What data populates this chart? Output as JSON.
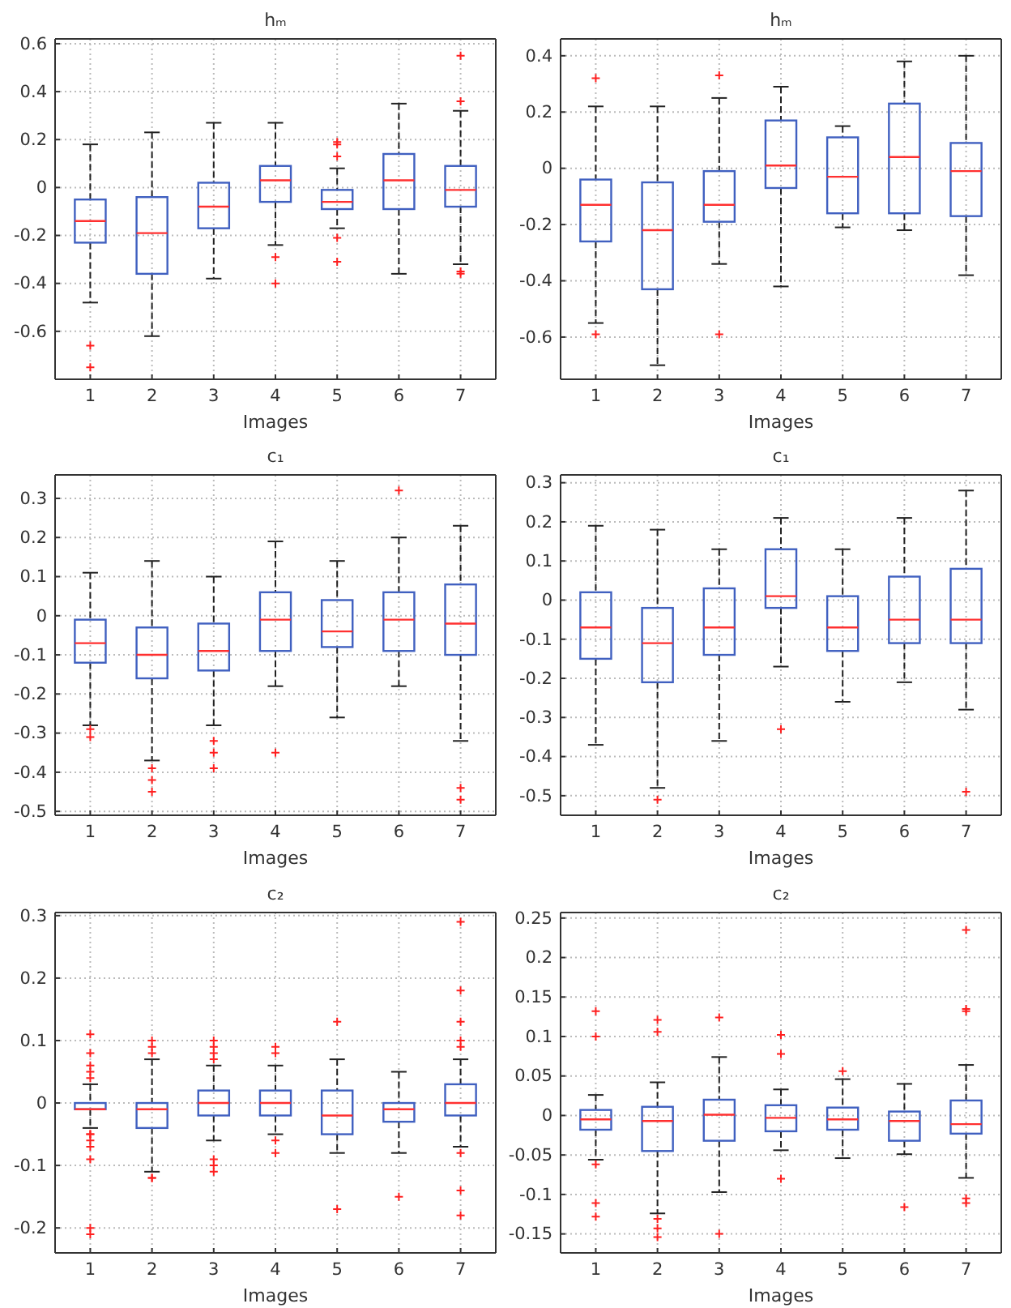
{
  "chart_data": [
    {
      "type": "box",
      "title": "hₘ",
      "xlabel": "Images",
      "categories": [
        "1",
        "2",
        "3",
        "4",
        "5",
        "6",
        "7"
      ],
      "ylim": [
        -0.8,
        0.62
      ],
      "yticks": [
        -0.6,
        -0.4,
        -0.2,
        0,
        0.2,
        0.4,
        0.6
      ],
      "grid": true,
      "series": [
        {
          "color": "#4060c0",
          "boxes": [
            {
              "low": -0.48,
              "q1": -0.23,
              "median": -0.14,
              "q3": -0.05,
              "high": 0.18,
              "outliers": [
                -0.66,
                -0.75
              ]
            },
            {
              "low": -0.62,
              "q1": -0.36,
              "median": -0.19,
              "q3": -0.04,
              "high": 0.23
            },
            {
              "low": -0.38,
              "q1": -0.17,
              "median": -0.08,
              "q3": 0.02,
              "high": 0.27
            },
            {
              "low": -0.24,
              "q1": -0.06,
              "median": 0.03,
              "q3": 0.09,
              "high": 0.27,
              "outliers": [
                -0.29,
                -0.4
              ]
            },
            {
              "low": -0.17,
              "q1": -0.09,
              "median": -0.06,
              "q3": -0.01,
              "high": 0.08,
              "outliers": [
                0.19,
                0.18,
                0.13,
                -0.21,
                -0.31
              ]
            },
            {
              "low": -0.36,
              "q1": -0.09,
              "median": 0.03,
              "q3": 0.14,
              "high": 0.35
            },
            {
              "low": -0.32,
              "q1": -0.08,
              "median": -0.01,
              "q3": 0.09,
              "high": 0.32,
              "outliers": [
                0.55,
                0.36,
                -0.35,
                -0.36
              ]
            }
          ]
        }
      ]
    },
    {
      "type": "box",
      "title": "hₘ",
      "xlabel": "Images",
      "categories": [
        "1",
        "2",
        "3",
        "4",
        "5",
        "6",
        "7"
      ],
      "ylim": [
        -0.75,
        0.46
      ],
      "yticks": [
        -0.6,
        -0.4,
        -0.2,
        0,
        0.2,
        0.4
      ],
      "grid": true,
      "series": [
        {
          "color": "#4060c0",
          "boxes": [
            {
              "low": -0.55,
              "q1": -0.26,
              "median": -0.13,
              "q3": -0.04,
              "high": 0.22,
              "outliers": [
                0.32,
                -0.59
              ]
            },
            {
              "low": -0.7,
              "q1": -0.43,
              "median": -0.22,
              "q3": -0.05,
              "high": 0.22
            },
            {
              "low": -0.34,
              "q1": -0.19,
              "median": -0.13,
              "q3": -0.01,
              "high": 0.25,
              "outliers": [
                0.33,
                -0.59
              ]
            },
            {
              "low": -0.42,
              "q1": -0.07,
              "median": 0.01,
              "q3": 0.17,
              "high": 0.29
            },
            {
              "low": -0.21,
              "q1": -0.16,
              "median": -0.03,
              "q3": 0.11,
              "high": 0.15
            },
            {
              "low": -0.22,
              "q1": -0.16,
              "median": 0.04,
              "q3": 0.23,
              "high": 0.38
            },
            {
              "low": -0.38,
              "q1": -0.17,
              "median": -0.01,
              "q3": 0.09,
              "high": 0.4
            }
          ]
        }
      ]
    },
    {
      "type": "box",
      "title": "c₁",
      "xlabel": "Images",
      "categories": [
        "1",
        "2",
        "3",
        "4",
        "5",
        "6",
        "7"
      ],
      "ylim": [
        -0.51,
        0.36
      ],
      "yticks": [
        -0.5,
        -0.4,
        -0.3,
        -0.2,
        -0.1,
        0,
        0.1,
        0.2,
        0.3
      ],
      "grid": true,
      "series": [
        {
          "color": "#4060c0",
          "boxes": [
            {
              "low": -0.28,
              "q1": -0.12,
              "median": -0.07,
              "q3": -0.01,
              "high": 0.11,
              "outliers": [
                -0.29,
                -0.31
              ]
            },
            {
              "low": -0.37,
              "q1": -0.16,
              "median": -0.1,
              "q3": -0.03,
              "high": 0.14,
              "outliers": [
                -0.39,
                -0.42,
                -0.45
              ]
            },
            {
              "low": -0.28,
              "q1": -0.14,
              "median": -0.09,
              "q3": -0.02,
              "high": 0.1,
              "outliers": [
                -0.32,
                -0.35,
                -0.39
              ]
            },
            {
              "low": -0.18,
              "q1": -0.09,
              "median": -0.01,
              "q3": 0.06,
              "high": 0.19,
              "outliers": [
                -0.35
              ]
            },
            {
              "low": -0.26,
              "q1": -0.08,
              "median": -0.04,
              "q3": 0.04,
              "high": 0.14
            },
            {
              "low": -0.18,
              "q1": -0.09,
              "median": -0.01,
              "q3": 0.06,
              "high": 0.2,
              "outliers": [
                0.32
              ]
            },
            {
              "low": -0.32,
              "q1": -0.1,
              "median": -0.02,
              "q3": 0.08,
              "high": 0.23,
              "outliers": [
                -0.44,
                -0.47
              ]
            }
          ]
        }
      ]
    },
    {
      "type": "box",
      "title": "c₁",
      "xlabel": "Images",
      "categories": [
        "1",
        "2",
        "3",
        "4",
        "5",
        "6",
        "7"
      ],
      "ylim": [
        -0.55,
        0.32
      ],
      "yticks": [
        -0.5,
        -0.4,
        -0.3,
        -0.2,
        -0.1,
        0,
        0.1,
        0.2,
        0.3
      ],
      "grid": true,
      "series": [
        {
          "color": "#4060c0",
          "boxes": [
            {
              "low": -0.37,
              "q1": -0.15,
              "median": -0.07,
              "q3": 0.02,
              "high": 0.19
            },
            {
              "low": -0.48,
              "q1": -0.21,
              "median": -0.11,
              "q3": -0.02,
              "high": 0.18,
              "outliers": [
                -0.51
              ]
            },
            {
              "low": -0.36,
              "q1": -0.14,
              "median": -0.07,
              "q3": 0.03,
              "high": 0.13
            },
            {
              "low": -0.17,
              "q1": -0.02,
              "median": 0.01,
              "q3": 0.13,
              "high": 0.21,
              "outliers": [
                -0.33
              ]
            },
            {
              "low": -0.26,
              "q1": -0.13,
              "median": -0.07,
              "q3": 0.01,
              "high": 0.13
            },
            {
              "low": -0.21,
              "q1": -0.11,
              "median": -0.05,
              "q3": 0.06,
              "high": 0.21
            },
            {
              "low": -0.28,
              "q1": -0.11,
              "median": -0.05,
              "q3": 0.08,
              "high": 0.28,
              "outliers": [
                -0.49
              ]
            }
          ]
        }
      ]
    },
    {
      "type": "box",
      "title": "c₂",
      "xlabel": "Images",
      "categories": [
        "1",
        "2",
        "3",
        "4",
        "5",
        "6",
        "7"
      ],
      "ylim": [
        -0.24,
        0.305
      ],
      "yticks": [
        -0.2,
        -0.1,
        0,
        0.1,
        0.2,
        0.3
      ],
      "grid": true,
      "series": [
        {
          "color": "#4060c0",
          "boxes": [
            {
              "low": -0.04,
              "q1": -0.01,
              "median": -0.01,
              "q3": 0.0,
              "high": 0.03,
              "outliers": [
                0.11,
                0.08,
                0.06,
                0.05,
                0.04,
                -0.05,
                -0.05,
                -0.06,
                -0.07,
                -0.09,
                -0.2,
                -0.21
              ]
            },
            {
              "low": -0.11,
              "q1": -0.04,
              "median": -0.01,
              "q3": 0.0,
              "high": 0.07,
              "outliers": [
                0.1,
                0.09,
                0.08,
                -0.12,
                -0.12
              ]
            },
            {
              "low": -0.06,
              "q1": -0.02,
              "median": 0.0,
              "q3": 0.02,
              "high": 0.06,
              "outliers": [
                0.1,
                0.09,
                0.08,
                0.07,
                -0.09,
                -0.1,
                -0.11
              ]
            },
            {
              "low": -0.05,
              "q1": -0.02,
              "median": 0.0,
              "q3": 0.02,
              "high": 0.06,
              "outliers": [
                0.09,
                0.08,
                -0.06,
                -0.08
              ]
            },
            {
              "low": -0.08,
              "q1": -0.05,
              "median": -0.02,
              "q3": 0.02,
              "high": 0.07,
              "outliers": [
                0.13,
                -0.17
              ]
            },
            {
              "low": -0.08,
              "q1": -0.03,
              "median": -0.01,
              "q3": 0.0,
              "high": 0.05,
              "outliers": [
                -0.15
              ]
            },
            {
              "low": -0.07,
              "q1": -0.02,
              "median": 0.0,
              "q3": 0.03,
              "high": 0.07,
              "outliers": [
                0.29,
                0.18,
                0.13,
                0.1,
                0.09,
                -0.08,
                -0.14,
                -0.18
              ]
            }
          ]
        }
      ]
    },
    {
      "type": "box",
      "title": "c₂",
      "xlabel": "Images",
      "categories": [
        "1",
        "2",
        "3",
        "4",
        "5",
        "6",
        "7"
      ],
      "ylim": [
        -0.174,
        0.257
      ],
      "yticks": [
        -0.15,
        -0.1,
        -0.05,
        0,
        0.05,
        0.1,
        0.15,
        0.2,
        0.25
      ],
      "grid": true,
      "series": [
        {
          "color": "#4060c0",
          "boxes": [
            {
              "low": -0.056,
              "q1": -0.018,
              "median": -0.005,
              "q3": 0.007,
              "high": 0.026,
              "outliers": [
                0.132,
                0.1,
                -0.062,
                -0.111,
                -0.128
              ]
            },
            {
              "low": -0.124,
              "q1": -0.045,
              "median": -0.007,
              "q3": 0.011,
              "high": 0.042,
              "outliers": [
                0.121,
                0.106,
                -0.131,
                -0.143,
                -0.154
              ]
            },
            {
              "low": -0.097,
              "q1": -0.032,
              "median": 0.001,
              "q3": 0.02,
              "high": 0.074,
              "outliers": [
                0.124,
                -0.15
              ]
            },
            {
              "low": -0.044,
              "q1": -0.02,
              "median": -0.003,
              "q3": 0.013,
              "high": 0.033,
              "outliers": [
                0.102,
                0.078,
                -0.08
              ]
            },
            {
              "low": -0.054,
              "q1": -0.018,
              "median": -0.005,
              "q3": 0.01,
              "high": 0.046,
              "outliers": [
                0.056
              ]
            },
            {
              "low": -0.049,
              "q1": -0.032,
              "median": -0.007,
              "q3": 0.005,
              "high": 0.04,
              "outliers": [
                -0.116
              ]
            },
            {
              "low": -0.079,
              "q1": -0.023,
              "median": -0.011,
              "q3": 0.019,
              "high": 0.064,
              "outliers": [
                0.235,
                0.135,
                0.132,
                -0.105,
                -0.111
              ]
            }
          ]
        }
      ]
    }
  ]
}
